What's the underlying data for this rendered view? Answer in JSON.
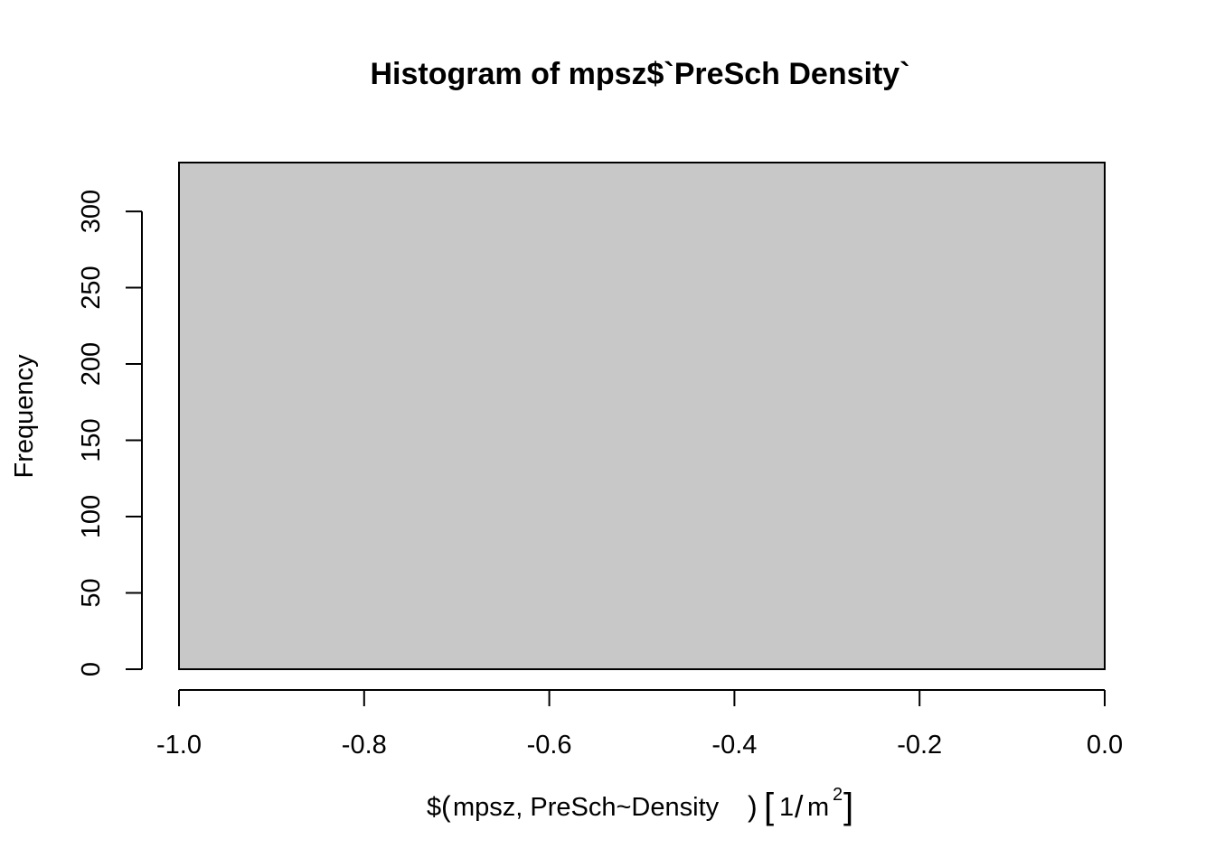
{
  "chart_data": {
    "type": "bar",
    "title": "Histogram of mpsz$`PreSch Density`",
    "ylabel": "Frequency",
    "xlabel": {
      "prefix": "$",
      "inner": "mpsz, PreSch~Density",
      "unit_num": "1",
      "unit_den": "m",
      "unit_exp": "2"
    },
    "xlim": [
      -1.0,
      0.0
    ],
    "ylim": [
      0,
      332
    ],
    "x_ticks": [
      -1.0,
      -0.8,
      -0.6,
      -0.4,
      -0.2,
      0.0
    ],
    "x_tick_labels": [
      "-1.0",
      "-0.8",
      "-0.6",
      "-0.4",
      "-0.2",
      "0.0"
    ],
    "y_ticks": [
      0,
      50,
      100,
      150,
      200,
      250,
      300
    ],
    "y_tick_labels": [
      "0",
      "50",
      "100",
      "150",
      "200",
      "250",
      "300"
    ],
    "bins": [
      {
        "start": -1.0,
        "end": 0.0,
        "count": 332
      }
    ],
    "bar_color": "#c8c8c8",
    "grid": false,
    "legend": "none"
  }
}
